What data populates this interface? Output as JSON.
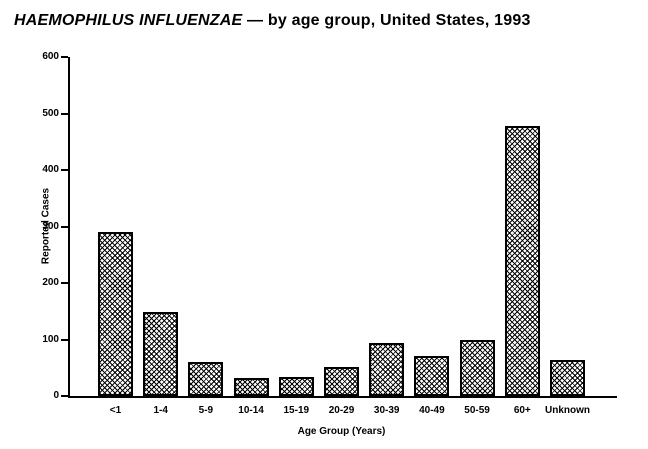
{
  "title": {
    "italic": "HAEMOPHILUS INFLUENZAE",
    "rest": " — by age group, United States, 1993"
  },
  "chart_data": {
    "type": "bar",
    "categories": [
      "<1",
      "1-4",
      "5-9",
      "10-14",
      "15-19",
      "20-29",
      "30-39",
      "40-49",
      "50-59",
      "60+",
      "Unknown"
    ],
    "values": [
      290,
      148,
      60,
      31,
      34,
      52,
      93,
      70,
      100,
      478,
      64
    ],
    "title": "HAEMOPHILUS INFLUENZAE — by age group, United States, 1993",
    "xlabel": "Age Group (Years)",
    "ylabel": "Reported Cases",
    "ylim": [
      0,
      600
    ],
    "yticks": [
      0,
      100,
      200,
      300,
      400,
      500,
      600
    ],
    "grid": false,
    "legend": "none",
    "bar_fill": "crosshatch-pattern",
    "bar_color": "#ffffff",
    "line_color": "#000000",
    "background_color": "#ffffff"
  }
}
